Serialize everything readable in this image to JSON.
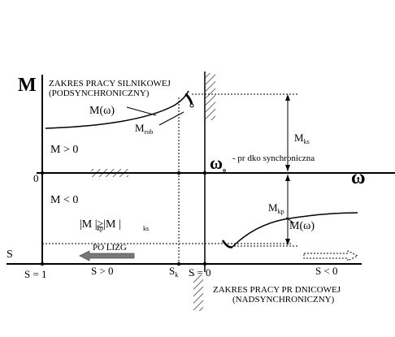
{
  "labels": {
    "axis_m": "M",
    "axis_omega": "ω",
    "axis_s": "S",
    "motor_region_line1": "ZAKRES PRACY SILNIKOWEJ",
    "motor_region_line2": "(PODSYNCHRONICZNY)",
    "generator_region_line1": "ZAKRES PRACY PR  DNICOWEJ",
    "generator_region_line2": "(NADSYNCHRONICZNY)",
    "m_omega_motor": "M(ω)",
    "m_omega_generator": "M(ω)",
    "m_rob": "M",
    "m_rob_sub": "rob",
    "m_ks": "M",
    "m_ks_sub": "ks",
    "m_kp": "M",
    "m_kp_sub": "kp",
    "omega0": "ω",
    "omega0_sub": "o",
    "omega0_desc": "- pr  dko    synchroniczna",
    "origin": "0",
    "m_positive": "M > 0",
    "m_negative": "M < 0",
    "inequality": "|M   |≥|M   |",
    "ineq_sub1": "kp",
    "ineq_sub2": "ks",
    "slip_arrow": "PO  LIZG",
    "s_eq_1": "S = 1",
    "s_gt_0": "S > 0",
    "s_k": "S",
    "s_k_sub": "k",
    "s_eq_0": "S = 0",
    "s_lt_0": "S < 0"
  }
}
